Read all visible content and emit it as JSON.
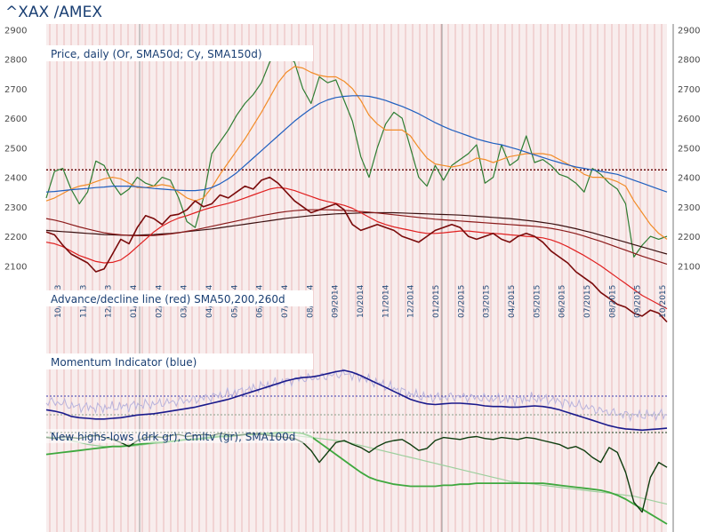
{
  "header": {
    "title": "^XAX /AMEX"
  },
  "chart_data": [
    {
      "type": "line",
      "panel": "price",
      "title": "Price, daily (Or, SMA50d; Cy, SMA150d)",
      "ylim": [
        2080,
        2910
      ],
      "y_ticks": [
        2100,
        2200,
        2300,
        2400,
        2500,
        2600,
        2700,
        2800,
        2900
      ],
      "x_ticks": [
        "10/2013",
        "11/2013",
        "12/2013",
        "01/2014",
        "02/2014",
        "03/2014",
        "04/2014",
        "05/2014",
        "06/2014",
        "07/2014",
        "08/2014",
        "09/2014",
        "10/2014",
        "11/2014",
        "12/2014",
        "01/2015",
        "02/2015",
        "03/2015",
        "04/2015",
        "05/2015",
        "06/2015",
        "07/2015",
        "08/2015",
        "09/2015",
        "10/2015"
      ],
      "reference_level": 2425,
      "series": [
        {
          "name": "Price",
          "color": "#2e7d32",
          "values": [
            2330,
            2420,
            2430,
            2360,
            2310,
            2350,
            2455,
            2440,
            2380,
            2340,
            2360,
            2400,
            2380,
            2370,
            2400,
            2390,
            2330,
            2250,
            2230,
            2330,
            2480,
            2520,
            2560,
            2610,
            2650,
            2680,
            2720,
            2790,
            2830,
            2810,
            2790,
            2700,
            2650,
            2740,
            2720,
            2730,
            2660,
            2590,
            2470,
            2400,
            2500,
            2580,
            2620,
            2600,
            2500,
            2400,
            2370,
            2440,
            2390,
            2440,
            2460,
            2480,
            2510,
            2380,
            2400,
            2510,
            2440,
            2460,
            2540,
            2450,
            2460,
            2440,
            2410,
            2400,
            2380,
            2350,
            2430,
            2410,
            2380,
            2360,
            2310,
            2130,
            2170,
            2200,
            2190,
            2200
          ]
        },
        {
          "name": "SMA50d",
          "color": "#f28c28",
          "values": [
            2320,
            2330,
            2345,
            2360,
            2370,
            2375,
            2385,
            2395,
            2400,
            2395,
            2380,
            2365,
            2365,
            2370,
            2375,
            2370,
            2350,
            2330,
            2320,
            2330,
            2365,
            2410,
            2450,
            2490,
            2530,
            2575,
            2620,
            2670,
            2720,
            2755,
            2775,
            2770,
            2755,
            2745,
            2740,
            2740,
            2725,
            2700,
            2660,
            2610,
            2580,
            2560,
            2560,
            2560,
            2540,
            2500,
            2465,
            2445,
            2440,
            2435,
            2440,
            2450,
            2465,
            2460,
            2450,
            2460,
            2470,
            2475,
            2480,
            2480,
            2480,
            2475,
            2460,
            2445,
            2430,
            2410,
            2400,
            2400,
            2395,
            2385,
            2370,
            2320,
            2280,
            2240,
            2210,
            2190
          ]
        },
        {
          "name": "SMA150d",
          "color": "#1f5fbf",
          "values": [
            2350,
            2352,
            2355,
            2358,
            2360,
            2362,
            2365,
            2367,
            2370,
            2370,
            2370,
            2368,
            2365,
            2362,
            2360,
            2358,
            2356,
            2355,
            2355,
            2358,
            2365,
            2378,
            2395,
            2415,
            2440,
            2465,
            2490,
            2515,
            2540,
            2565,
            2590,
            2612,
            2632,
            2650,
            2662,
            2670,
            2674,
            2676,
            2676,
            2674,
            2668,
            2660,
            2650,
            2640,
            2628,
            2615,
            2600,
            2585,
            2572,
            2560,
            2550,
            2540,
            2530,
            2522,
            2515,
            2510,
            2502,
            2494,
            2485,
            2476,
            2467,
            2458,
            2450,
            2442,
            2435,
            2430,
            2425,
            2420,
            2415,
            2410,
            2400,
            2390,
            2380,
            2370,
            2360,
            2350
          ]
        }
      ]
    },
    {
      "type": "line",
      "panel": "advance-decline",
      "title": "Advance/decline line (red) SMA50,200,260d",
      "series": [
        {
          "name": "A/D line",
          "color": "#7a0a0a",
          "values": [
            2215,
            2205,
            2170,
            2140,
            2125,
            2110,
            2080,
            2090,
            2140,
            2190,
            2175,
            2230,
            2270,
            2260,
            2240,
            2270,
            2275,
            2290,
            2320,
            2300,
            2310,
            2340,
            2330,
            2350,
            2370,
            2360,
            2390,
            2400,
            2380,
            2350,
            2320,
            2300,
            2280,
            2290,
            2300,
            2310,
            2290,
            2240,
            2220,
            2230,
            2240,
            2230,
            2220,
            2200,
            2190,
            2180,
            2200,
            2220,
            2230,
            2240,
            2230,
            2200,
            2190,
            2200,
            2210,
            2190,
            2180,
            2200,
            2210,
            2200,
            2180,
            2150,
            2130,
            2110,
            2080,
            2060,
            2040,
            2010,
            1990,
            1970,
            1960,
            1940,
            1930,
            1950,
            1940,
            1910
          ]
        },
        {
          "name": "SMA50",
          "color": "#e02020",
          "values": [
            2180,
            2175,
            2165,
            2150,
            2135,
            2125,
            2115,
            2110,
            2112,
            2120,
            2140,
            2165,
            2190,
            2215,
            2235,
            2250,
            2262,
            2270,
            2280,
            2290,
            2298,
            2305,
            2312,
            2320,
            2330,
            2340,
            2350,
            2360,
            2365,
            2362,
            2355,
            2345,
            2335,
            2325,
            2318,
            2312,
            2305,
            2295,
            2280,
            2265,
            2250,
            2240,
            2232,
            2226,
            2220,
            2214,
            2210,
            2210,
            2212,
            2215,
            2218,
            2218,
            2215,
            2212,
            2210,
            2208,
            2205,
            2203,
            2200,
            2198,
            2195,
            2188,
            2178,
            2165,
            2150,
            2135,
            2118,
            2100,
            2080,
            2060,
            2040,
            2020,
            2000,
            1985,
            1970,
            1955
          ]
        },
        {
          "name": "SMA200",
          "color": "#8b1a1a",
          "values": [
            2260,
            2255,
            2248,
            2240,
            2232,
            2225,
            2218,
            2212,
            2208,
            2205,
            2203,
            2202,
            2202,
            2203,
            2205,
            2208,
            2212,
            2217,
            2222,
            2228,
            2234,
            2240,
            2246,
            2252,
            2258,
            2264,
            2270,
            2275,
            2280,
            2284,
            2287,
            2289,
            2290,
            2290,
            2290,
            2289,
            2288,
            2286,
            2284,
            2282,
            2279,
            2276,
            2273,
            2270,
            2267,
            2264,
            2261,
            2258,
            2256,
            2254,
            2252,
            2250,
            2248,
            2246,
            2244,
            2242,
            2240,
            2238,
            2236,
            2234,
            2231,
            2227,
            2222,
            2216,
            2209,
            2201,
            2192,
            2183,
            2173,
            2163,
            2153,
            2143,
            2133,
            2124,
            2115,
            2106
          ]
        },
        {
          "name": "SMA260",
          "color": "#3a1010",
          "values": [
            2220,
            2218,
            2216,
            2214,
            2212,
            2210,
            2208,
            2206,
            2205,
            2204,
            2204,
            2204,
            2205,
            2206,
            2208,
            2210,
            2213,
            2216,
            2219,
            2222,
            2225,
            2229,
            2233,
            2237,
            2241,
            2245,
            2249,
            2253,
            2257,
            2261,
            2264,
            2267,
            2270,
            2272,
            2274,
            2276,
            2277,
            2278,
            2279,
            2280,
            2280,
            2280,
            2280,
            2279,
            2278,
            2277,
            2276,
            2275,
            2274,
            2273,
            2272,
            2270,
            2268,
            2266,
            2264,
            2262,
            2260,
            2257,
            2254,
            2251,
            2247,
            2243,
            2238,
            2232,
            2226,
            2219,
            2212,
            2204,
            2196,
            2188,
            2180,
            2172,
            2164,
            2156,
            2148,
            2140
          ]
        }
      ]
    },
    {
      "type": "line",
      "panel": "momentum",
      "title": "Momentum Indicator (blue)",
      "series": [
        {
          "name": "Momentum",
          "color": "#1a1a8c",
          "values": [
            0.4,
            0.38,
            0.35,
            0.3,
            0.28,
            0.27,
            0.26,
            0.26,
            0.27,
            0.28,
            0.3,
            0.32,
            0.33,
            0.34,
            0.36,
            0.38,
            0.4,
            0.42,
            0.44,
            0.47,
            0.5,
            0.53,
            0.56,
            0.6,
            0.64,
            0.68,
            0.72,
            0.76,
            0.8,
            0.84,
            0.87,
            0.89,
            0.9,
            0.92,
            0.95,
            0.98,
            1.0,
            0.97,
            0.92,
            0.86,
            0.8,
            0.74,
            0.68,
            0.62,
            0.56,
            0.52,
            0.49,
            0.48,
            0.49,
            0.5,
            0.5,
            0.49,
            0.48,
            0.46,
            0.45,
            0.45,
            0.44,
            0.44,
            0.45,
            0.46,
            0.45,
            0.43,
            0.4,
            0.36,
            0.32,
            0.28,
            0.24,
            0.2,
            0.16,
            0.13,
            0.11,
            0.1,
            0.09,
            0.1,
            0.11,
            0.12
          ]
        }
      ]
    },
    {
      "type": "line",
      "panel": "new-highs-lows",
      "title": "New highs-lows (drk gr), Cmltv (gr), SMA100d",
      "series": [
        {
          "name": "New highs-lows",
          "color": "#0f3d0f",
          "values": [
            0.95,
            0.94,
            0.96,
            0.95,
            0.94,
            0.96,
            0.97,
            0.95,
            0.93,
            0.9,
            0.86,
            0.92,
            0.95,
            0.96,
            0.95,
            0.97,
            0.98,
            0.96,
            0.97,
            0.98,
            0.97,
            0.99,
            0.98,
            0.97,
            0.98,
            0.99,
            0.98,
            0.97,
            0.96,
            0.95,
            0.94,
            0.9,
            0.82,
            0.7,
            0.8,
            0.9,
            0.92,
            0.88,
            0.85,
            0.8,
            0.86,
            0.9,
            0.92,
            0.93,
            0.88,
            0.82,
            0.84,
            0.92,
            0.95,
            0.94,
            0.93,
            0.95,
            0.96,
            0.94,
            0.93,
            0.95,
            0.94,
            0.93,
            0.95,
            0.94,
            0.92,
            0.9,
            0.88,
            0.84,
            0.86,
            0.82,
            0.75,
            0.7,
            0.85,
            0.8,
            0.6,
            0.3,
            0.2,
            0.55,
            0.7,
            0.65
          ]
        },
        {
          "name": "Cumulative",
          "color": "#3ea83e",
          "values": [
            0.78,
            0.79,
            0.8,
            0.81,
            0.82,
            0.83,
            0.84,
            0.85,
            0.86,
            0.86,
            0.87,
            0.88,
            0.89,
            0.9,
            0.9,
            0.91,
            0.92,
            0.93,
            0.93,
            0.94,
            0.95,
            0.96,
            0.96,
            0.97,
            0.98,
            0.98,
            0.99,
            0.99,
            1.0,
            1.0,
            1.0,
            0.99,
            0.96,
            0.9,
            0.84,
            0.78,
            0.72,
            0.66,
            0.6,
            0.55,
            0.52,
            0.5,
            0.48,
            0.47,
            0.46,
            0.46,
            0.46,
            0.46,
            0.47,
            0.47,
            0.48,
            0.48,
            0.49,
            0.49,
            0.49,
            0.49,
            0.49,
            0.49,
            0.49,
            0.49,
            0.49,
            0.48,
            0.47,
            0.46,
            0.45,
            0.44,
            0.43,
            0.42,
            0.4,
            0.37,
            0.33,
            0.28,
            0.23,
            0.18,
            0.13,
            0.08
          ]
        },
        {
          "name": "SMA100d",
          "color": "#9ecf9e",
          "values": [
            0.96,
            0.95,
            0.94,
            0.92,
            0.9,
            0.88,
            0.87,
            0.86,
            0.86,
            0.86,
            0.86,
            0.87,
            0.88,
            0.89,
            0.9,
            0.91,
            0.92,
            0.93,
            0.94,
            0.95,
            0.96,
            0.97,
            0.97,
            0.98,
            0.98,
            0.98,
            0.98,
            0.98,
            0.98,
            0.98,
            0.97,
            0.96,
            0.95,
            0.94,
            0.93,
            0.92,
            0.91,
            0.89,
            0.87,
            0.85,
            0.83,
            0.81,
            0.79,
            0.77,
            0.75,
            0.73,
            0.71,
            0.69,
            0.67,
            0.65,
            0.63,
            0.61,
            0.59,
            0.57,
            0.55,
            0.53,
            0.51,
            0.5,
            0.49,
            0.48,
            0.47,
            0.46,
            0.45,
            0.44,
            0.43,
            0.42,
            0.41,
            0.4,
            0.39,
            0.38,
            0.37,
            0.36,
            0.34,
            0.32,
            0.3,
            0.28
          ]
        }
      ]
    }
  ]
}
